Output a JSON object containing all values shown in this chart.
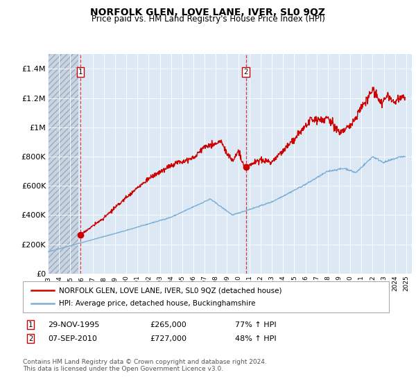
{
  "title": "NORFOLK GLEN, LOVE LANE, IVER, SL0 9QZ",
  "subtitle": "Price paid vs. HM Land Registry's House Price Index (HPI)",
  "bg_color": "#dce9f5",
  "ylim": [
    0,
    1500000
  ],
  "xlim_start": 1993.0,
  "xlim_end": 2025.5,
  "yticks": [
    0,
    200000,
    400000,
    600000,
    800000,
    1000000,
    1200000,
    1400000
  ],
  "ytick_labels": [
    "£0",
    "£200K",
    "£400K",
    "£600K",
    "£800K",
    "£1M",
    "£1.2M",
    "£1.4M"
  ],
  "red_line_color": "#cc0000",
  "blue_line_color": "#7bafd4",
  "point1_x": 1995.91,
  "point1_y": 265000,
  "point2_x": 2010.68,
  "point2_y": 727000,
  "legend_label_red": "NORFOLK GLEN, LOVE LANE, IVER, SL0 9QZ (detached house)",
  "legend_label_blue": "HPI: Average price, detached house, Buckinghamshire",
  "table_row1": [
    "1",
    "29-NOV-1995",
    "£265,000",
    "77% ↑ HPI"
  ],
  "table_row2": [
    "2",
    "07-SEP-2010",
    "£727,000",
    "48% ↑ HPI"
  ],
  "footer": "Contains HM Land Registry data © Crown copyright and database right 2024.\nThis data is licensed under the Open Government Licence v3.0.",
  "hatch_end_year": 1995.75
}
